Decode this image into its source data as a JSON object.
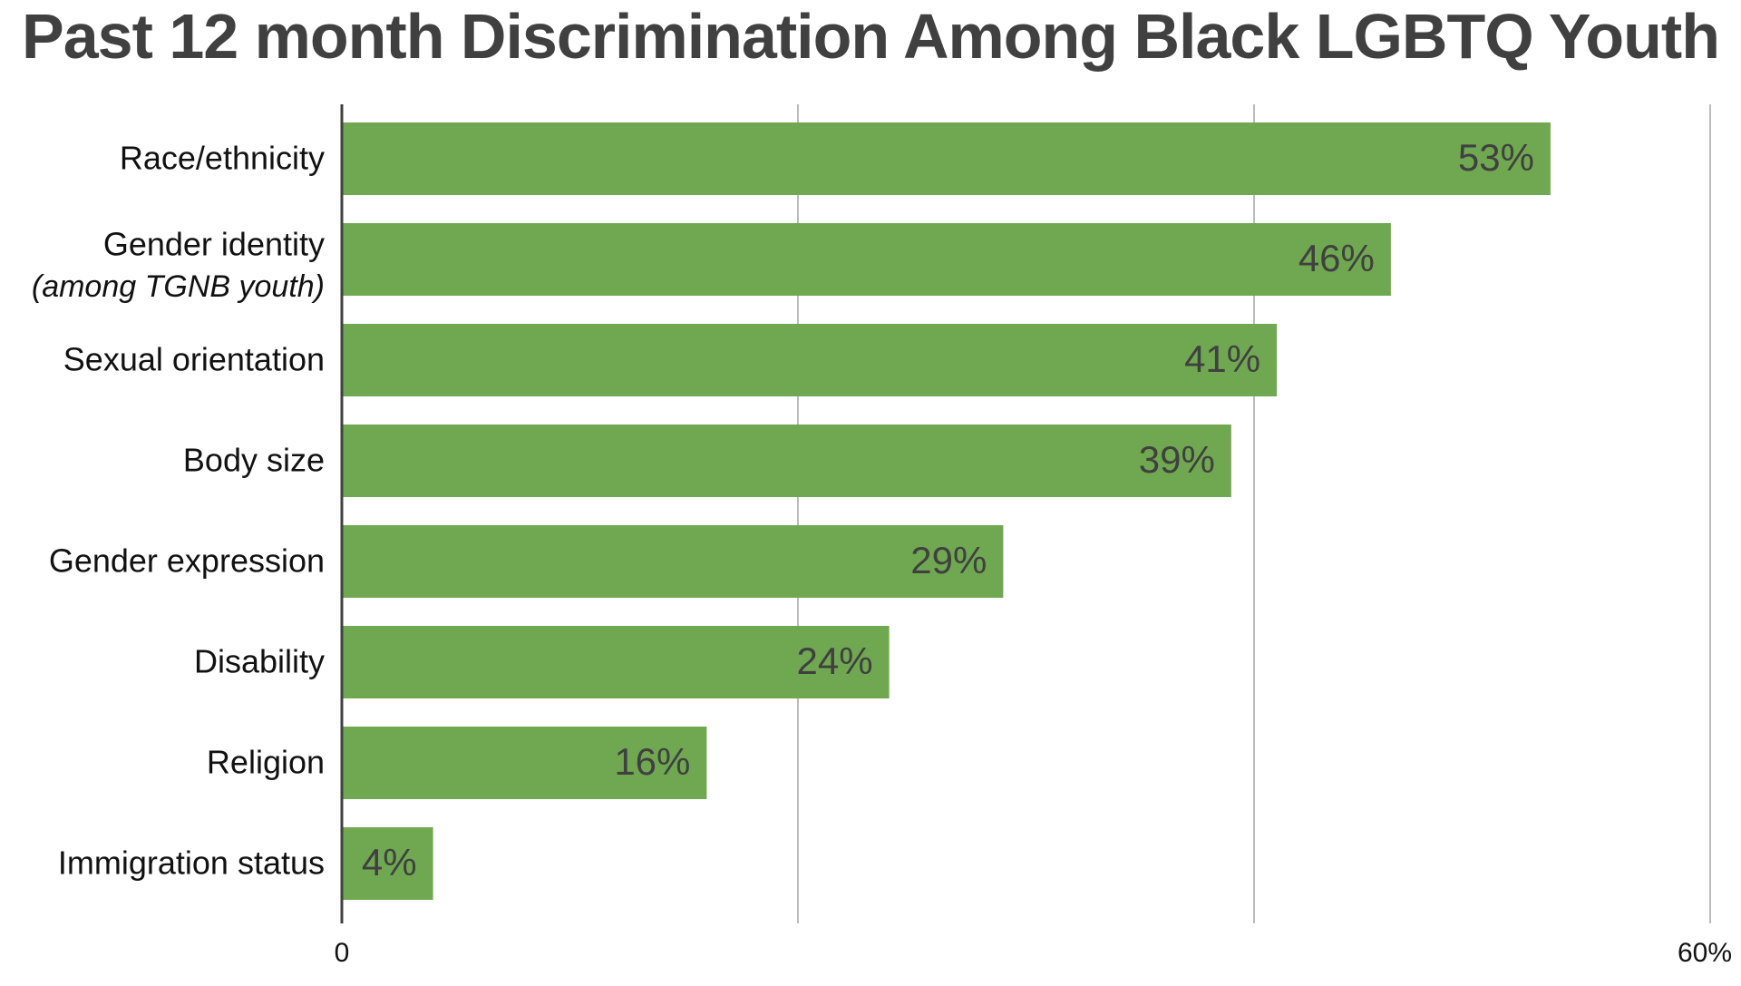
{
  "chart_data": {
    "type": "bar",
    "orientation": "horizontal",
    "title": "Past 12 month Discrimination Among Black LGBTQ Youth",
    "categories": [
      "Race/ethnicity",
      "Gender identity",
      "Sexual orientation",
      "Body size",
      "Gender expression",
      "Disability",
      "Religion",
      "Immigration status"
    ],
    "category_sublabels": [
      "",
      "(among TGNB youth)",
      "",
      "",
      "",
      "",
      "",
      ""
    ],
    "values": [
      53,
      46,
      41,
      39,
      29,
      24,
      16,
      4
    ],
    "data_labels": [
      "53%",
      "46%",
      "41%",
      "39%",
      "29%",
      "24%",
      "16%",
      "4%"
    ],
    "xlim": [
      0,
      60
    ],
    "x_tick_values": [
      0,
      20,
      40,
      60
    ],
    "x_tick_labels": [
      "0",
      "",
      "",
      "60%"
    ],
    "grid": true,
    "legend": "none",
    "colors": {
      "bar": "#70a851",
      "axis": "#404040",
      "grid": "#a6a6a6",
      "title": "#404040"
    }
  }
}
